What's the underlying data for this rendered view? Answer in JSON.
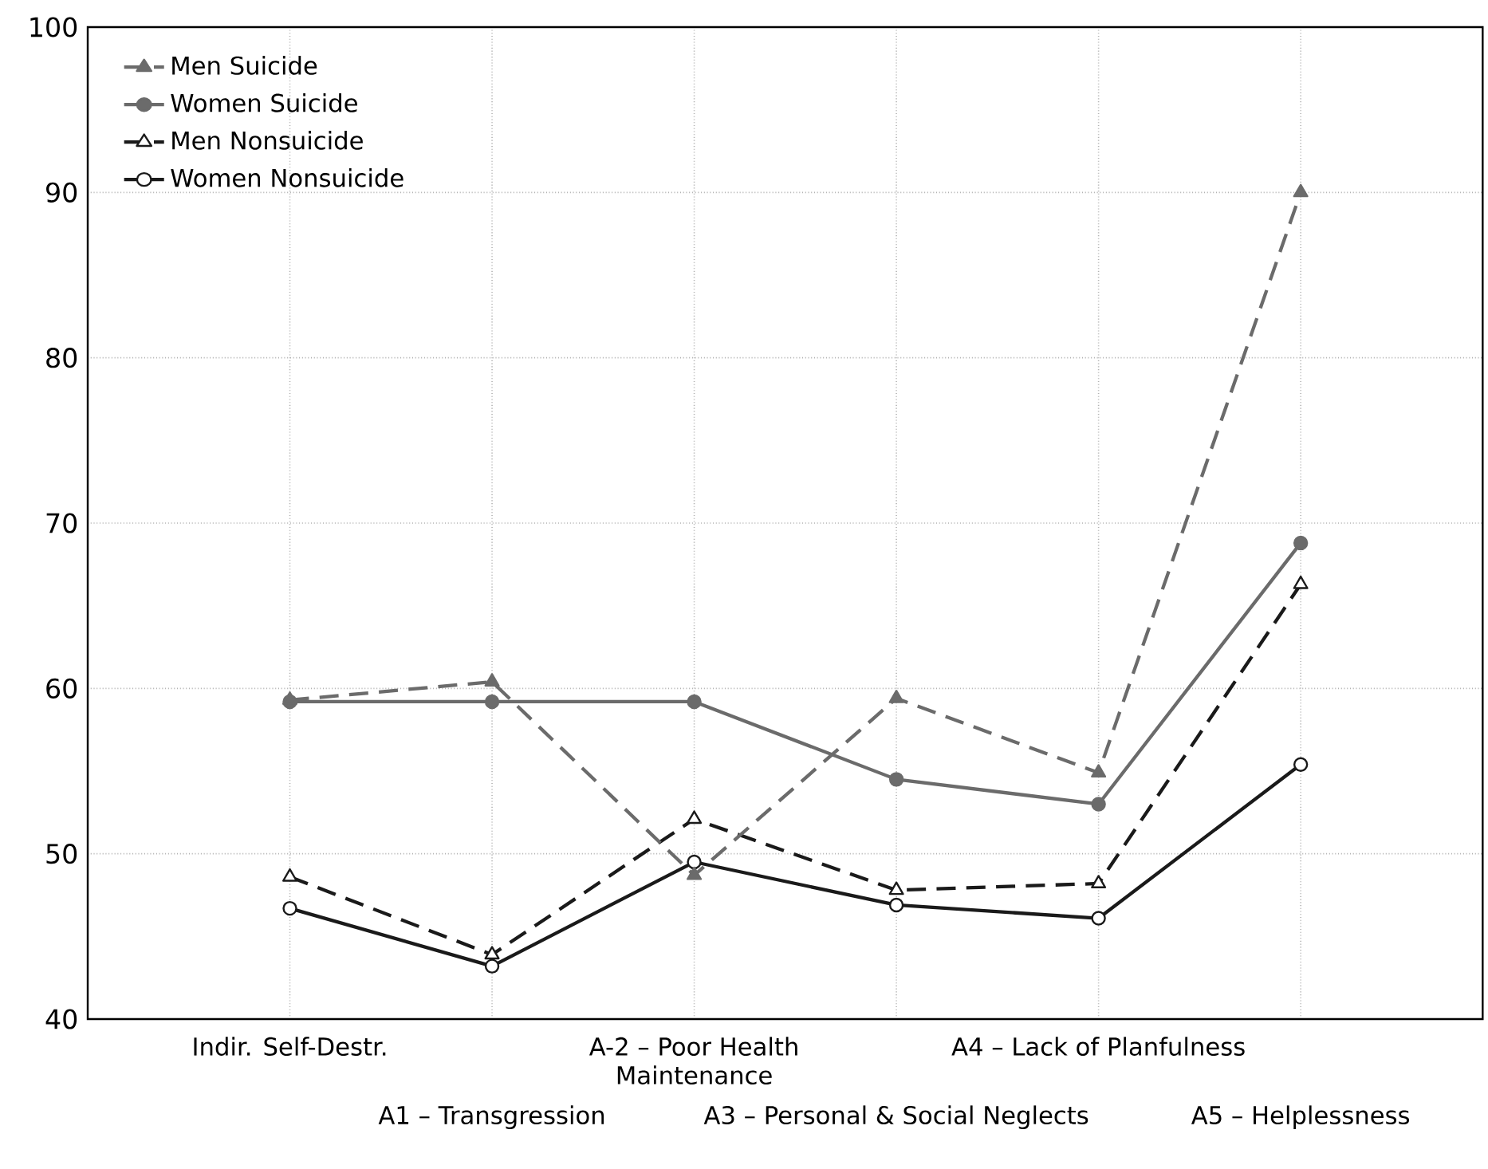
{
  "chart_data": {
    "type": "line",
    "categories": [
      "Indir. Self-Destr.",
      "A1 – Transgression",
      "A-2 – Poor Health Maintenance",
      "A3 – Personal & Social Neglects",
      "A4 – Lack of Planfulness",
      "A5 – Helplessness"
    ],
    "series": [
      {
        "name": "Men Suicide",
        "color": "#6b6b6b",
        "marker": "triangle",
        "line_style": "dashed",
        "values": [
          59.3,
          60.4,
          48.7,
          59.4,
          54.9,
          90.0
        ]
      },
      {
        "name": "Women Suicide",
        "color": "#6b6b6b",
        "marker": "circle",
        "line_style": "solid",
        "values": [
          59.2,
          59.2,
          59.2,
          54.5,
          53.0,
          68.8
        ]
      },
      {
        "name": "Men Nonsuicide",
        "color": "#1a1a1a",
        "marker": "triangle",
        "line_style": "dashed",
        "values": [
          48.6,
          43.9,
          52.1,
          47.8,
          48.2,
          66.3
        ]
      },
      {
        "name": "Women Nonsuicide",
        "color": "#1a1a1a",
        "marker": "circle",
        "line_style": "solid",
        "values": [
          46.7,
          43.2,
          49.5,
          46.9,
          46.1,
          55.4
        ]
      }
    ],
    "ylim": [
      40,
      100
    ],
    "yticks": [
      40,
      50,
      60,
      70,
      80,
      90,
      100
    ],
    "grid": true,
    "legend": "top left"
  }
}
